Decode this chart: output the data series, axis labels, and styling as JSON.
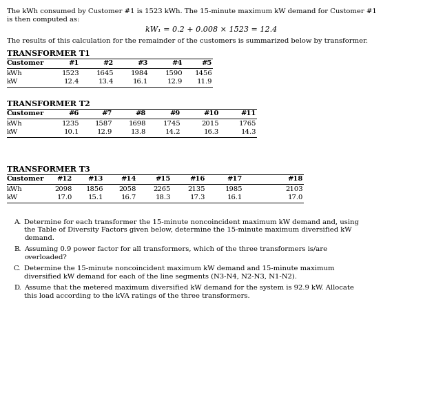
{
  "intro_line1": "The kWh consumed by Customer #1 is 1523 kWh. The 15-minute maximum kW demand for Customer #1",
  "intro_line2": "is then computed as:",
  "formula": "kW₁ = 0.2 + 0.008 × 1523 = 12.4",
  "summary": "The results of this calculation for the remainder of the customers is summarized below by transformer.",
  "t1_title": "TRANSFORMER T1",
  "t1_headers": [
    "Customer",
    "#1",
    "#2",
    "#3",
    "#4",
    "#5"
  ],
  "t1_kwh": [
    "kWh",
    "1523",
    "1645",
    "1984",
    "1590",
    "1456"
  ],
  "t1_kw": [
    "kW",
    "12.4",
    "13.4",
    "16.1",
    "12.9",
    "11.9"
  ],
  "t2_title": "TRANSFORMER T2",
  "t2_headers": [
    "Customer",
    "#6",
    "#7",
    "#8",
    "#9",
    "#10",
    "#11"
  ],
  "t2_kwh": [
    "kWh",
    "1235",
    "1587",
    "1698",
    "1745",
    "2015",
    "1765"
  ],
  "t2_kw": [
    "kW",
    "10.1",
    "12.9",
    "13.8",
    "14.2",
    "16.3",
    "14.3"
  ],
  "t3_title": "TRANSFORMER T3",
  "t3_headers": [
    "Customer",
    "#12",
    "#13",
    "#14",
    "#15",
    "#16",
    "#17",
    "#18"
  ],
  "t3_kwh": [
    "kWh",
    "2098",
    "1856",
    "2058",
    "2265",
    "2135",
    "1985",
    "2103"
  ],
  "t3_kw": [
    "kW",
    "17.0",
    "15.1",
    "16.7",
    "18.3",
    "17.3",
    "16.1",
    "17.0"
  ],
  "itemA_label": "A.",
  "itemA_l1": "Determine for each transformer the 15-minute noncoincident maximum kW demand and, using",
  "itemA_l2": "the Table of Diversity Factors given below, determine the 15-minute maximum diversified kW",
  "itemA_l3": "demand.",
  "itemB_label": "B.",
  "itemB_l1": "Assuming 0.9 power factor for all transformers, which of the three transformers is/are",
  "itemB_l2": "overloaded?",
  "itemC_label": "C.",
  "itemC_l1": "Determine the 15-minute noncoincident maximum kW demand and 15-minute maximum",
  "itemC_l2": "diversified kW demand for each of the line segments (N3-N4, N2-N3, N1-N2).",
  "itemD_label": "D.",
  "itemD_l1": "Assume that the metered maximum diversified kW demand for the system is 92.9 kW. Allocate",
  "itemD_l2": "this load according to the kVA ratings of the three transformers.",
  "bg_color": "#ffffff",
  "text_color": "#000000",
  "fig_w": 6.14,
  "fig_h": 5.89,
  "dpi": 100
}
